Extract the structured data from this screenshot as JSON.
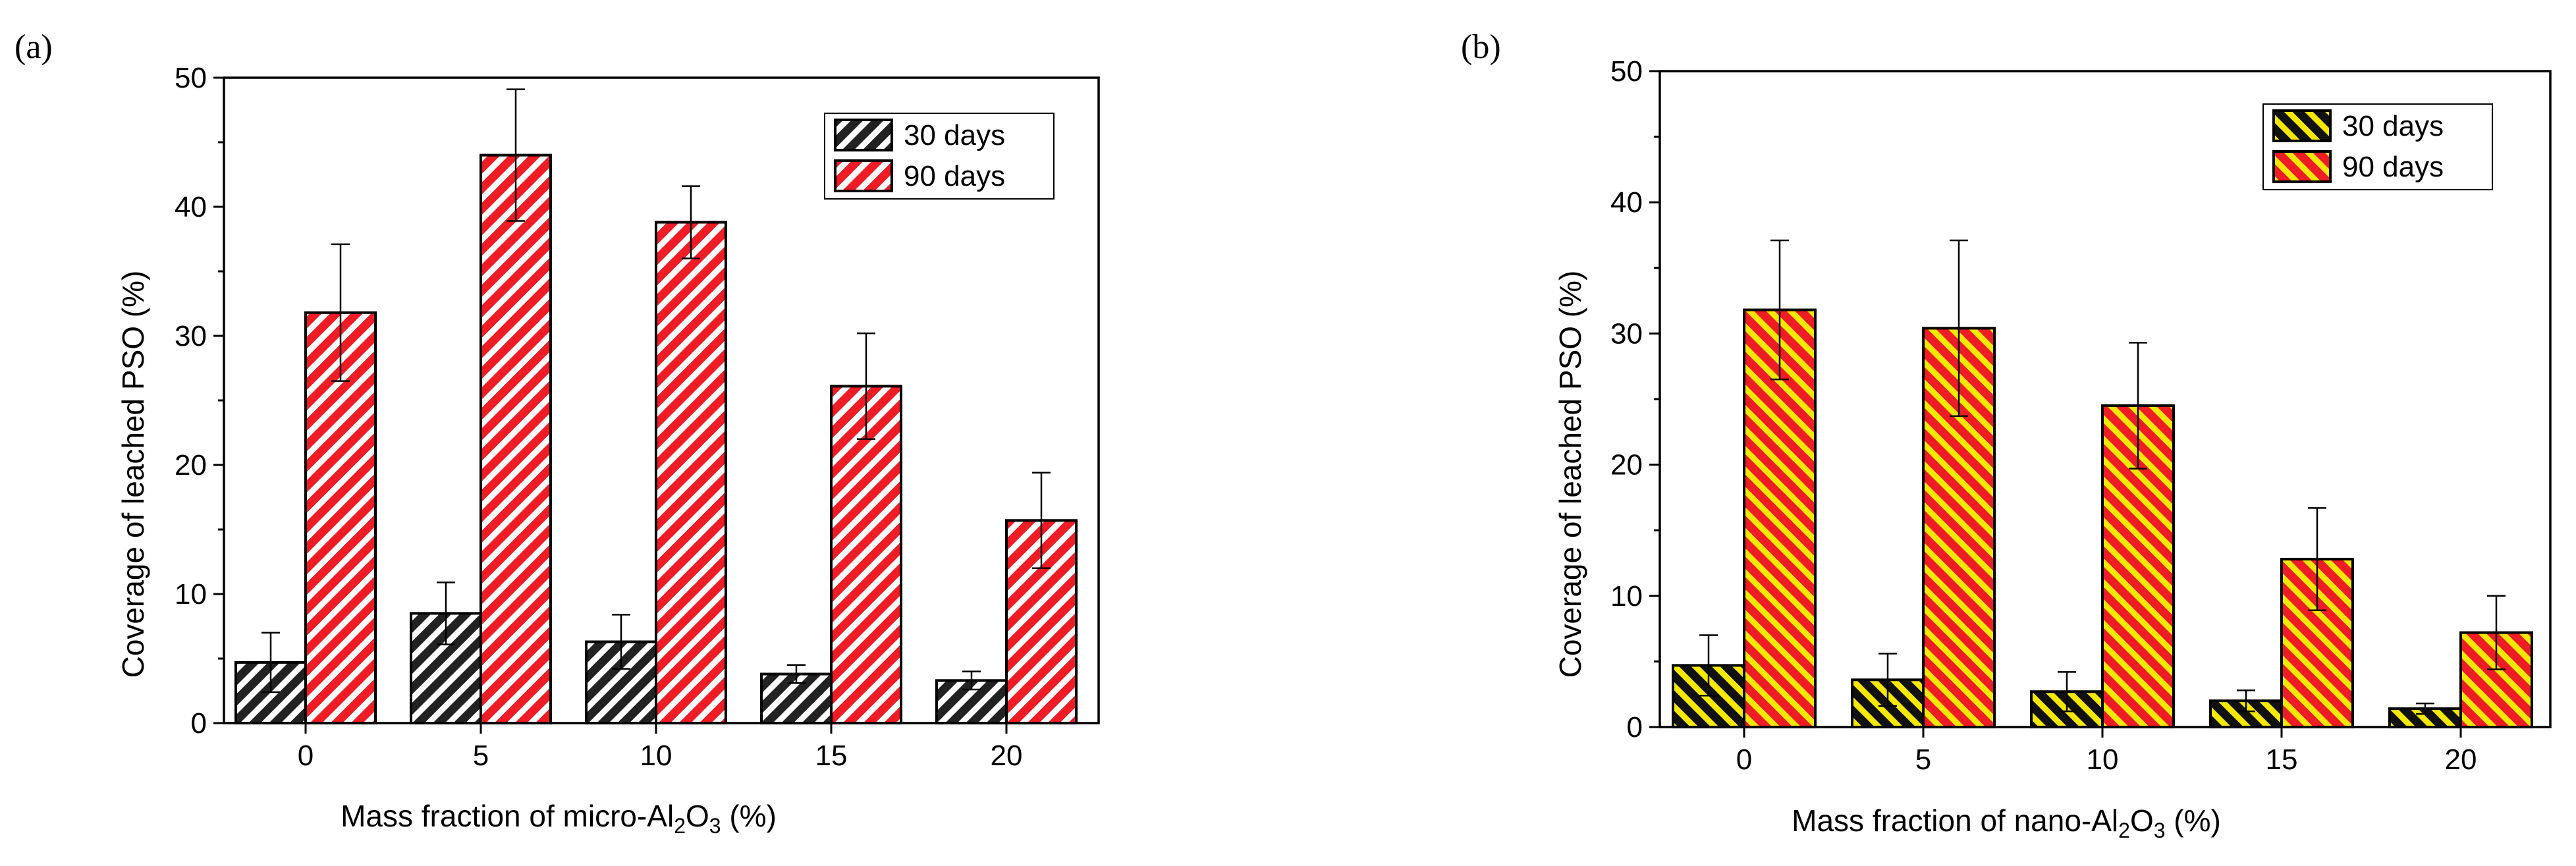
{
  "chart_data": [
    {
      "type": "bar",
      "panel_label": "(a)",
      "categories": [
        "0",
        "5",
        "10",
        "15",
        "20"
      ],
      "series": [
        {
          "name": "30 days",
          "values": [
            4.7,
            8.5,
            6.3,
            3.8,
            3.3
          ],
          "errors": [
            2.3,
            2.4,
            2.1,
            0.7,
            0.7
          ],
          "color": "#222222",
          "hatch_color": "#ffffff"
        },
        {
          "name": "90 days",
          "values": [
            31.8,
            44.0,
            38.8,
            26.1,
            15.7
          ],
          "errors": [
            5.3,
            5.1,
            2.8,
            4.1,
            3.7
          ],
          "color": "#ee1c25",
          "hatch_color": "#ffffff"
        }
      ],
      "title": "",
      "xlabel": "Mass fraction of micro-Al₂O₃ (%)",
      "xlabel_parts": [
        "Mass fraction of micro-Al",
        "2",
        "O",
        "3",
        " (%)"
      ],
      "ylabel": "Coverage of leached PSO (%)",
      "ylim": [
        0,
        50
      ],
      "yticks": [
        "0",
        "10",
        "20",
        "30",
        "40",
        "50"
      ],
      "legend_position": "top-right"
    },
    {
      "type": "bar",
      "panel_label": "(b)",
      "categories": [
        "0",
        "5",
        "10",
        "15",
        "20"
      ],
      "series": [
        {
          "name": "30 days",
          "values": [
            4.7,
            3.6,
            2.7,
            2.0,
            1.4
          ],
          "errors": [
            2.3,
            2.0,
            1.5,
            0.8,
            0.4
          ],
          "color": "#111111",
          "hatch_color": "#f5e800"
        },
        {
          "name": "90 days",
          "values": [
            31.8,
            30.4,
            24.5,
            12.8,
            7.2
          ],
          "errors": [
            5.3,
            6.7,
            4.8,
            3.9,
            2.8
          ],
          "color": "#ee1c25",
          "hatch_color": "#f5e800"
        }
      ],
      "title": "",
      "xlabel": "Mass fraction of nano-Al₂O₃ (%)",
      "xlabel_parts": [
        "Mass fraction of nano-Al",
        "2",
        "O",
        "3",
        " (%)"
      ],
      "ylabel": "Coverage of leached PSO (%)",
      "ylim": [
        0,
        50
      ],
      "yticks": [
        "0",
        "10",
        "20",
        "30",
        "40",
        "50"
      ],
      "legend_position": "top-right"
    }
  ]
}
